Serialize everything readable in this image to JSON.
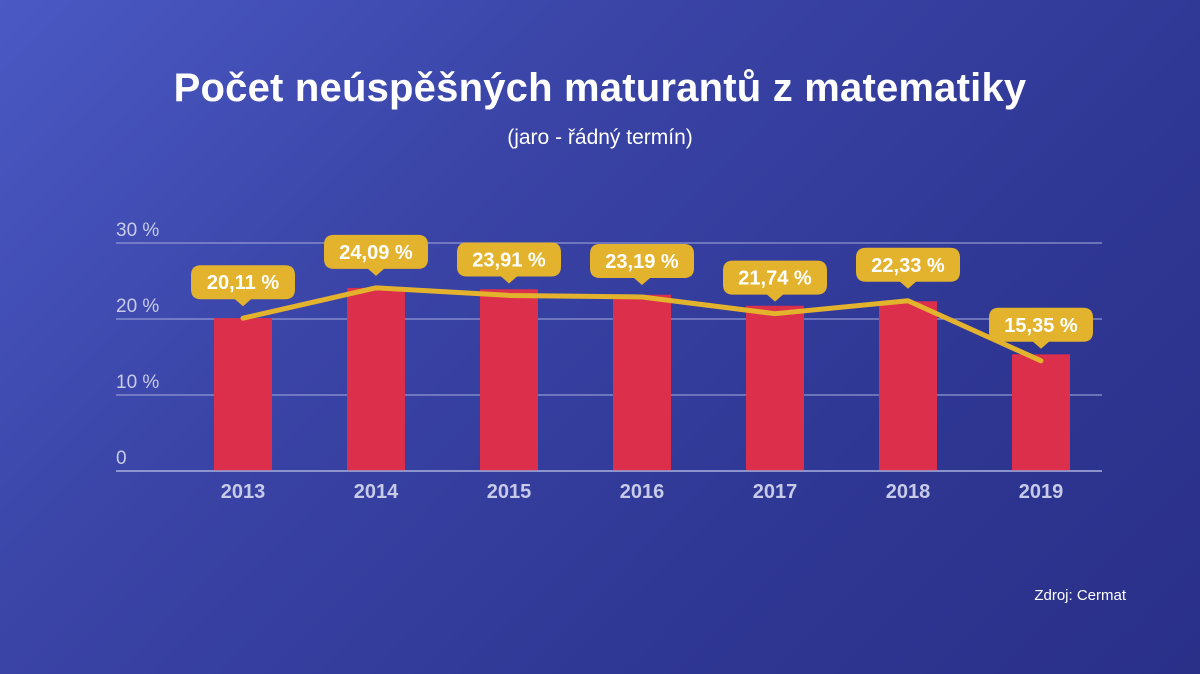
{
  "title": "Počet neúspěšných maturantů z matematiky",
  "subtitle": "(jaro - řádný termín)",
  "source": "Zdroj: Cermat",
  "colors": {
    "bar": "#dc2f4b",
    "line": "#e3b32d",
    "label_bg": "#e3b32d",
    "grid": "#9aa2d6",
    "tick_text": "#c7cbe8"
  },
  "chart_data": {
    "type": "bar",
    "categories": [
      "2013",
      "2014",
      "2015",
      "2016",
      "2017",
      "2018",
      "2019"
    ],
    "series": [
      {
        "values": [
          20.11,
          24.09,
          23.91,
          23.19,
          21.74,
          22.33,
          15.35
        ]
      }
    ],
    "line_values": [
      20.1,
      24.1,
      23.1,
      22.9,
      20.7,
      22.4,
      14.5
    ],
    "data_labels": [
      "20,11 %",
      "24,09 %",
      "23,91 %",
      "23,19 %",
      "21,74 %",
      "22,33 %",
      "15,35 %"
    ],
    "y_ticks": [
      {
        "value": 0,
        "label": "0"
      },
      {
        "value": 10,
        "label": "10 %"
      },
      {
        "value": 20,
        "label": "20 %"
      },
      {
        "value": 30,
        "label": "30 %"
      }
    ],
    "ylim": [
      0,
      30
    ],
    "grid": true,
    "legend": "none",
    "title": "Počet neúspěšných maturantů z matematiky",
    "xlabel": "",
    "ylabel": ""
  }
}
